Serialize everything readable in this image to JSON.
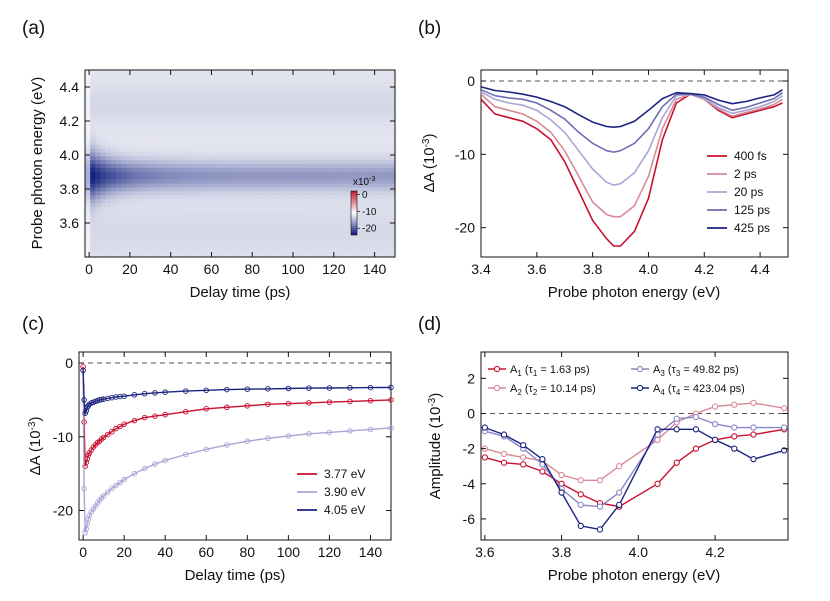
{
  "panels": {
    "a": "(a)",
    "b": "(b)",
    "c": "(c)",
    "d": "(d)"
  },
  "chart_data": [
    {
      "id": "a",
      "type": "heatmap",
      "xlabel": "Delay time (ps)",
      "ylabel": "Probe photon energy (eV)",
      "xlim": [
        -2,
        150
      ],
      "ylim": [
        3.4,
        4.5
      ],
      "xticks": [
        "0",
        "20",
        "40",
        "60",
        "80",
        "100",
        "120",
        "140"
      ],
      "xtick_values": [
        0,
        20,
        40,
        60,
        80,
        100,
        120,
        140
      ],
      "yticks": [
        "3.6",
        "3.8",
        "4.0",
        "4.2",
        "4.4"
      ],
      "ytick_values": [
        3.6,
        3.8,
        4.0,
        4.2,
        4.4
      ],
      "colorbar": {
        "multiplier": "x10",
        "exponent": "-3",
        "ticks": [
          "0",
          "-10",
          "-20"
        ],
        "tick_values": [
          0,
          -10,
          -20
        ],
        "range": [
          -24,
          2
        ],
        "colors": [
          "#0b1a7a",
          "#ffffff",
          "#c0182c"
        ]
      },
      "model": {
        "background": -4.5,
        "peak_center_ev": 3.88,
        "amplitude_early": -22,
        "amplitude_late": -8
      }
    },
    {
      "id": "b",
      "type": "line",
      "xlabel": "Probe photon energy (eV)",
      "ylabel": "ΔA",
      "ylabel_unit": "(10",
      "ylabel_exp": "-3",
      "ylabel_close": ")",
      "xlim": [
        3.4,
        4.5
      ],
      "ylim": [
        -24,
        1.5
      ],
      "xticks": [
        "3.4",
        "3.6",
        "3.8",
        "4.0",
        "4.2",
        "4.4"
      ],
      "xtick_values": [
        3.4,
        3.6,
        3.8,
        4.0,
        4.2,
        4.4
      ],
      "yticks": [
        "0",
        "-10",
        "-20"
      ],
      "ytick_values": [
        0,
        -10,
        -20
      ],
      "zero_line": true,
      "legend_position": "right",
      "x": [
        3.4,
        3.45,
        3.5,
        3.55,
        3.6,
        3.65,
        3.7,
        3.75,
        3.8,
        3.85,
        3.875,
        3.9,
        3.95,
        4.0,
        4.05,
        4.1,
        4.15,
        4.2,
        4.25,
        4.3,
        4.35,
        4.4,
        4.45,
        4.48
      ],
      "series": [
        {
          "name": "400 fs",
          "color": "#c8102e",
          "values": [
            -2.5,
            -4.5,
            -5.0,
            -5.5,
            -6.5,
            -8.0,
            -11.0,
            -15.0,
            -19.0,
            -21.5,
            -22.5,
            -22.5,
            -20.5,
            -16.0,
            -8.0,
            -3.0,
            -1.8,
            -2.5,
            -4.0,
            -5.0,
            -4.5,
            -4.0,
            -3.5,
            -3.0
          ]
        },
        {
          "name": "2 ps",
          "color": "#d98a97",
          "values": [
            -1.8,
            -3.5,
            -4.0,
            -4.5,
            -5.5,
            -7.0,
            -9.5,
            -13.0,
            -16.5,
            -18.2,
            -18.5,
            -18.5,
            -17.0,
            -13.0,
            -6.5,
            -2.5,
            -1.8,
            -2.5,
            -3.8,
            -4.8,
            -4.3,
            -3.8,
            -3.2,
            -2.5
          ]
        },
        {
          "name": "20 ps",
          "color": "#a9a6d6",
          "values": [
            -1.5,
            -2.5,
            -3.0,
            -3.3,
            -4.0,
            -5.3,
            -7.0,
            -9.5,
            -12.0,
            -13.8,
            -14.2,
            -14.0,
            -12.5,
            -9.5,
            -5.0,
            -2.0,
            -1.8,
            -2.4,
            -3.6,
            -4.4,
            -4.0,
            -3.5,
            -2.8,
            -2.0
          ]
        },
        {
          "name": "125 ps",
          "color": "#6e6db5",
          "values": [
            -1.2,
            -2.0,
            -2.3,
            -2.5,
            -3.0,
            -4.0,
            -5.2,
            -7.0,
            -8.5,
            -9.5,
            -9.7,
            -9.5,
            -8.5,
            -6.5,
            -3.5,
            -1.8,
            -1.8,
            -2.2,
            -3.2,
            -4.0,
            -3.6,
            -3.0,
            -2.4,
            -1.6
          ]
        },
        {
          "name": "425 ps",
          "color": "#1a237e",
          "values": [
            -0.8,
            -1.3,
            -1.5,
            -1.8,
            -2.2,
            -2.8,
            -3.5,
            -4.6,
            -5.6,
            -6.2,
            -6.3,
            -6.2,
            -5.5,
            -4.0,
            -2.4,
            -1.6,
            -1.7,
            -1.9,
            -2.6,
            -3.1,
            -2.8,
            -2.3,
            -1.9,
            -1.2
          ]
        }
      ]
    },
    {
      "id": "c",
      "type": "scatter",
      "xlabel": "Delay time (ps)",
      "ylabel": "ΔA",
      "ylabel_unit": "(10",
      "ylabel_exp": "-3",
      "ylabel_close": ")",
      "xlim": [
        -2,
        150
      ],
      "ylim": [
        -24,
        1.5
      ],
      "xticks": [
        "0",
        "20",
        "40",
        "60",
        "80",
        "100",
        "120",
        "140"
      ],
      "xtick_values": [
        0,
        20,
        40,
        60,
        80,
        100,
        120,
        140
      ],
      "yticks": [
        "0",
        "-10",
        "-20"
      ],
      "ytick_values": [
        0,
        -10,
        -20
      ],
      "zero_line": true,
      "legend_position": "bottom-right",
      "x": [
        0,
        0.5,
        1,
        1.5,
        2,
        2.5,
        3,
        4,
        5,
        6,
        7,
        8,
        9,
        10,
        12,
        14,
        16,
        18,
        20,
        25,
        30,
        35,
        40,
        50,
        60,
        70,
        80,
        90,
        100,
        110,
        120,
        130,
        140,
        150
      ],
      "series": [
        {
          "name": "3.77 eV",
          "color": "#c8102e",
          "values": [
            -0.5,
            -8.0,
            -14.0,
            -13.5,
            -13.0,
            -12.5,
            -12.2,
            -11.8,
            -11.4,
            -11.1,
            -10.8,
            -10.6,
            -10.3,
            -10.1,
            -9.7,
            -9.3,
            -8.9,
            -8.6,
            -8.3,
            -7.8,
            -7.4,
            -7.2,
            -7.0,
            -6.6,
            -6.2,
            -6.0,
            -5.8,
            -5.6,
            -5.5,
            -5.4,
            -5.3,
            -5.2,
            -5.1,
            -5.0
          ]
        },
        {
          "name": "3.90 eV",
          "color": "#a9a6d6",
          "values": [
            -1.0,
            -17.0,
            -23.0,
            -22.5,
            -21.8,
            -21.2,
            -20.7,
            -20.2,
            -19.8,
            -19.4,
            -19.0,
            -18.6,
            -18.3,
            -18.0,
            -17.5,
            -17.0,
            -16.6,
            -16.2,
            -15.8,
            -15.0,
            -14.3,
            -13.7,
            -13.2,
            -12.4,
            -11.7,
            -11.1,
            -10.6,
            -10.2,
            -9.9,
            -9.6,
            -9.4,
            -9.2,
            -9.0,
            -8.8
          ]
        },
        {
          "name": "4.05 eV",
          "color": "#1a237e",
          "values": [
            -1.0,
            -5.0,
            -6.8,
            -6.5,
            -6.0,
            -5.8,
            -5.6,
            -5.4,
            -5.3,
            -5.2,
            -5.1,
            -5.0,
            -4.95,
            -4.9,
            -4.8,
            -4.7,
            -4.6,
            -4.55,
            -4.5,
            -4.3,
            -4.15,
            -4.05,
            -3.95,
            -3.8,
            -3.7,
            -3.6,
            -3.55,
            -3.5,
            -3.45,
            -3.4,
            -3.38,
            -3.35,
            -3.33,
            -3.3
          ]
        }
      ]
    },
    {
      "id": "d",
      "type": "line",
      "xlabel": "Probe photon energy (eV)",
      "ylabel": "Amplitude",
      "ylabel_unit": "(10",
      "ylabel_exp": "-3",
      "ylabel_close": ")",
      "xlim": [
        3.59,
        4.39
      ],
      "ylim": [
        -7.2,
        3.5
      ],
      "xticks": [
        "3.6",
        "3.8",
        "4.0",
        "4.2"
      ],
      "xtick_values": [
        3.6,
        3.8,
        4.0,
        4.2
      ],
      "yticks": [
        "2",
        "0",
        "-2",
        "-4",
        "-6"
      ],
      "ytick_values": [
        2,
        0,
        -2,
        -4,
        -6
      ],
      "zero_line": true,
      "legend_position": "top",
      "series": [
        {
          "name_main": "A",
          "name_sub": "1",
          "name_tail": " (τ",
          "tau_sub": "1",
          "tau_val": " = 1.63 ps)",
          "color": "#c8102e",
          "x": [
            3.6,
            3.65,
            3.7,
            3.75,
            3.8,
            3.85,
            3.9,
            3.95,
            4.05,
            4.1,
            4.15,
            4.2,
            4.25,
            4.3,
            4.38
          ],
          "values": [
            -2.5,
            -2.8,
            -2.9,
            -3.3,
            -4.0,
            -4.6,
            -5.1,
            -5.3,
            -4.0,
            -2.8,
            -2.0,
            -1.5,
            -1.3,
            -1.2,
            -0.9
          ]
        },
        {
          "name_main": "A",
          "name_sub": "2",
          "name_tail": " (τ",
          "tau_sub": "2",
          "tau_val": " = 10.14 ps)",
          "color": "#d98a97",
          "x": [
            3.6,
            3.65,
            3.7,
            3.75,
            3.8,
            3.85,
            3.9,
            3.95,
            4.05,
            4.1,
            4.15,
            4.2,
            4.25,
            4.3,
            4.38
          ],
          "values": [
            -2.0,
            -2.3,
            -2.5,
            -2.7,
            -3.5,
            -3.8,
            -3.8,
            -3.0,
            -1.5,
            -0.5,
            0.0,
            0.4,
            0.5,
            0.6,
            0.3
          ]
        },
        {
          "name_main": "A",
          "name_sub": "3",
          "name_tail": " (τ",
          "tau_sub": "3",
          "tau_val": " = 49.82 ps)",
          "color": "#8a87c8",
          "x": [
            3.6,
            3.65,
            3.7,
            3.75,
            3.8,
            3.85,
            3.9,
            3.95,
            4.05,
            4.1,
            4.15,
            4.2,
            4.25,
            4.3,
            4.38
          ],
          "values": [
            -1.0,
            -1.3,
            -2.0,
            -2.9,
            -4.3,
            -5.2,
            -5.3,
            -4.5,
            -1.2,
            -0.3,
            -0.2,
            -0.6,
            -0.8,
            -0.8,
            -0.8
          ]
        },
        {
          "name_main": "A",
          "name_sub": "4",
          "name_tail": " (τ",
          "tau_sub": "4",
          "tau_val": " = 423.04 ps)",
          "color": "#1a237e",
          "x": [
            3.6,
            3.65,
            3.7,
            3.75,
            3.8,
            3.85,
            3.9,
            3.95,
            4.05,
            4.1,
            4.15,
            4.2,
            4.25,
            4.3,
            4.38
          ],
          "values": [
            -0.8,
            -1.2,
            -1.8,
            -2.6,
            -4.5,
            -6.4,
            -6.6,
            -5.2,
            -0.9,
            -0.9,
            -0.9,
            -1.5,
            -2.0,
            -2.6,
            -2.1
          ]
        }
      ]
    }
  ]
}
